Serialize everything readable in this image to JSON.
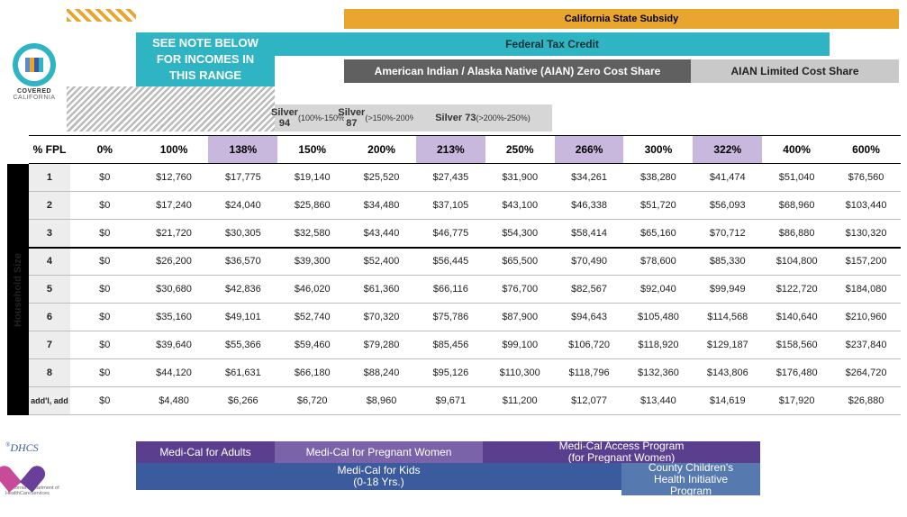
{
  "logo": {
    "line1": "COVERED",
    "line2": "CALIFORNIA"
  },
  "dhcs": {
    "name": "DHCS",
    "sub": "California Department of HealthCareServices"
  },
  "bands": {
    "state_subsidy": "California State Subsidy",
    "federal_credit": "Federal Tax Credit",
    "aian_zero": "American Indian / Alaska Native (AIAN) Zero Cost Share",
    "aian_limited": "AIAN Limited Cost Share",
    "note": "SEE NOTE BELOW FOR INCOMES IN THIS RANGE"
  },
  "silver": {
    "s94": {
      "title": "Silver 94",
      "range": "(100%-150%)"
    },
    "s87": {
      "title": "Silver 87",
      "range": "(>150%-200%)"
    },
    "s73": {
      "title": "Silver 73",
      "range": "(>200%-250%)"
    }
  },
  "fpl_label": "% FPL",
  "side_label": "Household Size",
  "cols": [
    {
      "label": "0%",
      "hl": false
    },
    {
      "label": "100%",
      "hl": false
    },
    {
      "label": "138%",
      "hl": true
    },
    {
      "label": "150%",
      "hl": false
    },
    {
      "label": "200%",
      "hl": false
    },
    {
      "label": "213%",
      "hl": true
    },
    {
      "label": "250%",
      "hl": false
    },
    {
      "label": "266%",
      "hl": true
    },
    {
      "label": "300%",
      "hl": false
    },
    {
      "label": "322%",
      "hl": true
    },
    {
      "label": "400%",
      "hl": false
    },
    {
      "label": "600%",
      "hl": false
    }
  ],
  "rows": [
    {
      "label": "1",
      "cells": [
        "$0",
        "$12,760",
        "$17,775",
        "$19,140",
        "$25,520",
        "$27,435",
        "$31,900",
        "$34,261",
        "$38,280",
        "$41,474",
        "$51,040",
        "$76,560"
      ]
    },
    {
      "label": "2",
      "cells": [
        "$0",
        "$17,240",
        "$24,040",
        "$25,860",
        "$34,480",
        "$37,105",
        "$43,100",
        "$46,338",
        "$51,720",
        "$56,093",
        "$68,960",
        "$103,440"
      ]
    },
    {
      "label": "3",
      "cells": [
        "$0",
        "$21,720",
        "$30,305",
        "$32,580",
        "$43,440",
        "$46,775",
        "$54,300",
        "$58,414",
        "$65,160",
        "$70,712",
        "$86,880",
        "$130,320"
      ]
    },
    {
      "label": "4",
      "cells": [
        "$0",
        "$26,200",
        "$36,570",
        "$39,300",
        "$52,400",
        "$56,445",
        "$65,500",
        "$70,490",
        "$78,600",
        "$85,330",
        "$104,800",
        "$157,200"
      ]
    },
    {
      "label": "5",
      "cells": [
        "$0",
        "$30,680",
        "$42,836",
        "$46,020",
        "$61,360",
        "$66,116",
        "$76,700",
        "$82,567",
        "$92,040",
        "$99,949",
        "$122,720",
        "$184,080"
      ]
    },
    {
      "label": "6",
      "cells": [
        "$0",
        "$35,160",
        "$49,101",
        "$52,740",
        "$70,320",
        "$75,786",
        "$87,900",
        "$94,643",
        "$105,480",
        "$114,568",
        "$140,640",
        "$210,960"
      ]
    },
    {
      "label": "7",
      "cells": [
        "$0",
        "$39,640",
        "$55,366",
        "$59,460",
        "$79,280",
        "$85,456",
        "$99,100",
        "$106,720",
        "$118,920",
        "$129,187",
        "$158,560",
        "$237,840"
      ]
    },
    {
      "label": "8",
      "cells": [
        "$0",
        "$44,120",
        "$61,631",
        "$66,180",
        "$88,240",
        "$95,126",
        "$110,300",
        "$118,796",
        "$132,360",
        "$143,806",
        "$176,480",
        "$264,720"
      ]
    },
    {
      "label": "add'l, add",
      "cells": [
        "$0",
        "$4,480",
        "$6,266",
        "$6,720",
        "$8,960",
        "$9,671",
        "$11,200",
        "$12,077",
        "$13,440",
        "$14,619",
        "$17,920",
        "$26,880"
      ]
    }
  ],
  "programs": {
    "adults": "Medi-Cal for Adults",
    "preg": "Medi-Cal for Pregnant Women",
    "access_l1": "Medi-Cal Access Program",
    "access_l2": "(for Pregnant Women)",
    "kids_l1": "Medi-Cal for Kids",
    "kids_l2": "(0-18 Yrs.)",
    "cchip_l1": "County Children's",
    "cchip_l2": "Health Initiative",
    "cchip_l3": "Program"
  },
  "layout": {
    "left_margin": 78,
    "col_widths": {
      "side": 20,
      "rowhead": 46,
      "data": 77
    }
  },
  "colors": {
    "yellow": "#e8a62f",
    "teal": "#2fb4c4",
    "gray": "#606060",
    "ltgray": "#c9c9c9",
    "silver": "#d6d6d6",
    "purple_hl": "#c8b8de",
    "p_dark": "#5a3f8e",
    "p_mid": "#7a63a8",
    "p_blue": "#3c5b9e",
    "p_blue2": "#567ab0"
  }
}
